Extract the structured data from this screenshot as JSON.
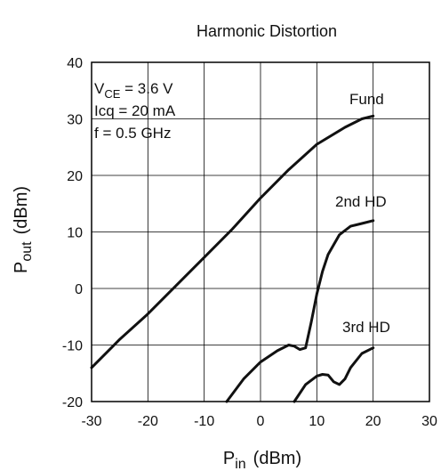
{
  "chart_data": {
    "type": "line",
    "title": "Harmonic Distortion",
    "xlabel": "P",
    "xlabel_sub": "in",
    "xlabel_unit": "(dBm)",
    "ylabel": "P",
    "ylabel_sub": "out",
    "ylabel_unit": "(dBm)",
    "xlim": [
      -30,
      30
    ],
    "ylim": [
      -20,
      40
    ],
    "x_ticks": [
      "-30",
      "-20",
      "-10",
      "0",
      "10",
      "20",
      "30"
    ],
    "y_ticks": [
      "-20",
      "-10",
      "0",
      "10",
      "20",
      "30",
      "40"
    ],
    "grid": true,
    "annotations": [
      {
        "main": "V",
        "sub": "CE",
        "rest": " = 3.6 V"
      },
      {
        "main": "Icq = 20 mA",
        "sub": "",
        "rest": ""
      },
      {
        "main": "f = 0.5 GHz",
        "sub": "",
        "rest": ""
      }
    ],
    "series": [
      {
        "name": "Fund",
        "x": [
          -30,
          -25,
          -20,
          -15,
          -10,
          -5,
          0,
          5,
          10,
          15,
          18,
          20
        ],
        "y": [
          -14,
          -9,
          -4.5,
          0.5,
          5.5,
          10.5,
          16,
          21,
          25.5,
          28.5,
          30,
          30.5
        ]
      },
      {
        "name": "2nd HD",
        "x": [
          -6,
          -3,
          0,
          3,
          5,
          6,
          7,
          8,
          9,
          10,
          11,
          12,
          14,
          16,
          18,
          20
        ],
        "y": [
          -20,
          -16,
          -13,
          -11,
          -10,
          -10.2,
          -10.8,
          -10.5,
          -6,
          -1,
          3,
          6,
          9.5,
          11,
          11.5,
          12
        ]
      },
      {
        "name": "3rd HD",
        "x": [
          6,
          8,
          10,
          11,
          12,
          13,
          14,
          15,
          16,
          18,
          20
        ],
        "y": [
          -20,
          -17,
          -15.5,
          -15.2,
          -15.3,
          -16.5,
          -17,
          -16,
          -14,
          -11.5,
          -10.5
        ]
      }
    ]
  }
}
